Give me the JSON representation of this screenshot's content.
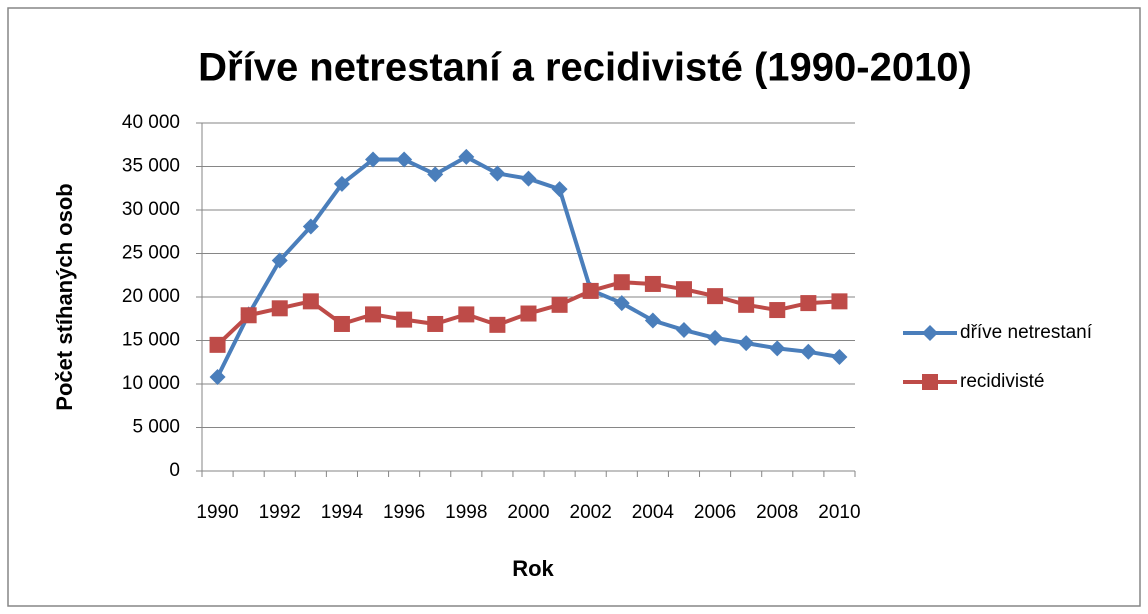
{
  "chart_data": {
    "type": "line",
    "title": "Dříve netrestaní a recidivisté (1990-2010)",
    "x_label": "Rok",
    "y_label": "Počet stíhaných osob",
    "categories": [
      "1990",
      null,
      "1992",
      null,
      "1994",
      null,
      "1996",
      null,
      "1998",
      null,
      "2000",
      null,
      "2002",
      null,
      "2004",
      null,
      "2006",
      null,
      "2008",
      null,
      "2010"
    ],
    "series": [
      {
        "name": "dříve netrestaní",
        "color": "#4a7ebb",
        "marker": "diamond",
        "values": [
          10800,
          18000,
          24200,
          28100,
          33000,
          35800,
          35800,
          34100,
          36100,
          34200,
          33600,
          32400,
          20800,
          19300,
          17300,
          16200,
          15300,
          14700,
          14100,
          13700,
          13100
        ]
      },
      {
        "name": "recidivisté",
        "color": "#be4b48",
        "marker": "square",
        "values": [
          14500,
          17900,
          18700,
          19500,
          16900,
          18000,
          17400,
          16900,
          18000,
          16800,
          18100,
          19100,
          20700,
          21700,
          21500,
          20900,
          20100,
          19100,
          18500,
          19300,
          19500
        ]
      }
    ],
    "ylim": [
      0,
      40000
    ],
    "yticks": [
      0,
      {
        "value": 5000,
        "label": "5 000"
      },
      {
        "value": 10000,
        "label": "10 000"
      },
      {
        "value": 15000,
        "label": "15 000"
      },
      {
        "value": 20000,
        "label": "20 000"
      },
      {
        "value": 25000,
        "label": "25 000"
      },
      {
        "value": 30000,
        "label": "30 000"
      },
      {
        "value": 35000,
        "label": "35 000"
      },
      {
        "value": 40000,
        "label": "40 000"
      }
    ],
    "grid": true,
    "legend": "right"
  }
}
